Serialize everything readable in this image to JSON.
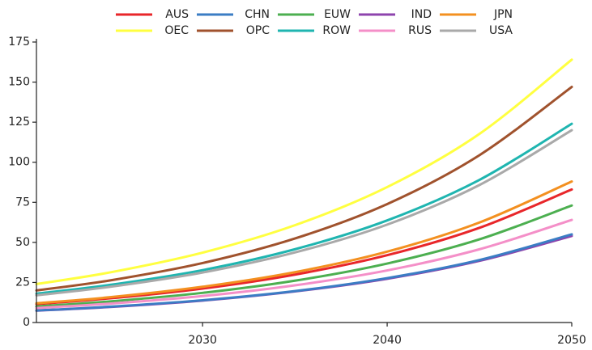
{
  "chart_data": {
    "type": "line",
    "x": [
      2021,
      2025,
      2030,
      2035,
      2040,
      2045,
      2050
    ],
    "xlim": [
      2021,
      2050
    ],
    "xticks": [
      2030,
      2040,
      2050
    ],
    "ylim": [
      0,
      175
    ],
    "yticks": [
      0,
      25,
      50,
      75,
      100,
      125,
      150,
      175
    ],
    "grid": false,
    "legend": "top",
    "series": [
      {
        "name": "AUS",
        "color": "#e8262a",
        "values": [
          11.5,
          15.1,
          21.2,
          29.9,
          42.0,
          59.1,
          83
        ]
      },
      {
        "name": "CHN",
        "color": "#3b7dc4",
        "values": [
          7.5,
          9.9,
          13.9,
          19.6,
          27.7,
          39.0,
          55
        ]
      },
      {
        "name": "EUW",
        "color": "#4caf50",
        "values": [
          10,
          13.2,
          18.5,
          26.1,
          36.8,
          51.9,
          73
        ]
      },
      {
        "name": "IND",
        "color": "#8e44ad",
        "values": [
          7.4,
          9.7,
          13.7,
          19.4,
          27.3,
          38.5,
          54
        ]
      },
      {
        "name": "JPN",
        "color": "#f39020",
        "values": [
          12,
          15.8,
          22.3,
          31.4,
          44.2,
          62.4,
          88
        ]
      },
      {
        "name": "OEC",
        "color": "#ffff40",
        "values": [
          24,
          31.3,
          43.6,
          60.7,
          84.5,
          117.7,
          164
        ]
      },
      {
        "name": "OPC",
        "color": "#a0522d",
        "values": [
          20,
          26.3,
          37.1,
          52.4,
          73.9,
          104.4,
          147
        ]
      },
      {
        "name": "ROW",
        "color": "#1fb5b0",
        "values": [
          18,
          23.5,
          32.7,
          45.7,
          63.7,
          89.0,
          124
        ]
      },
      {
        "name": "RUS",
        "color": "#f48fc8",
        "values": [
          9,
          11.8,
          16.5,
          23.2,
          32.5,
          45.7,
          64
        ]
      },
      {
        "name": "USA",
        "color": "#a9a9a9",
        "values": [
          17,
          22.3,
          31.2,
          43.7,
          61.1,
          85.8,
          120
        ]
      }
    ]
  }
}
